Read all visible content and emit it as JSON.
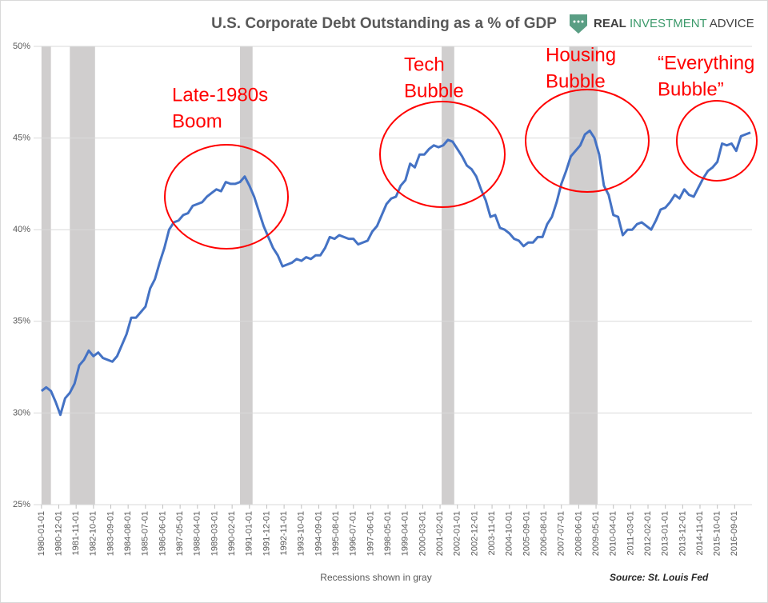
{
  "chart_data": {
    "type": "line",
    "title": "U.S. Corporate Debt Outstanding as a % of GDP",
    "brand": [
      "REAL",
      "INVESTMENT",
      "ADVICE"
    ],
    "x_label": "Recessions shown in gray",
    "source": "Source: St. Louis Fed",
    "color": "#4472c4",
    "band_color": "#d0cece",
    "grid": true,
    "ylim": [
      25,
      50
    ],
    "yticks": [
      {
        "value": 25,
        "label": "25%"
      },
      {
        "value": 30,
        "label": "30%"
      },
      {
        "value": 35,
        "label": "35%"
      },
      {
        "value": 40,
        "label": "40%"
      },
      {
        "value": 45,
        "label": "45%"
      },
      {
        "value": 50,
        "label": "50%"
      }
    ],
    "xlim": [
      "1979-08-01",
      "2017-08-01"
    ],
    "xticks": [
      "1980-01-01",
      "1980-12-01",
      "1981-11-01",
      "1982-10-01",
      "1983-09-01",
      "1984-08-01",
      "1985-07-01",
      "1986-06-01",
      "1987-05-01",
      "1988-04-01",
      "1989-03-01",
      "1990-02-01",
      "1991-01-01",
      "1991-12-01",
      "1992-11-01",
      "1993-10-01",
      "1994-09-01",
      "1995-08-01",
      "1996-07-01",
      "1997-06-01",
      "1998-05-01",
      "1999-04-01",
      "2000-03-01",
      "2001-02-01",
      "2002-01-01",
      "2002-12-01",
      "2003-11-01",
      "2004-10-01",
      "2005-09-01",
      "2006-08-01",
      "2007-07-01",
      "2008-06-01",
      "2009-05-01",
      "2010-04-01",
      "2011-03-01",
      "2012-02-01",
      "2013-01-01",
      "2013-12-01",
      "2014-11-01",
      "2015-10-01",
      "2016-09-01"
    ],
    "recessions": [
      [
        "1980-01-01",
        "1980-07-01"
      ],
      [
        "1981-07-01",
        "1982-11-01"
      ],
      [
        "1990-07-01",
        "1991-03-01"
      ],
      [
        "2001-03-01",
        "2001-11-01"
      ],
      [
        "2007-12-01",
        "2009-06-01"
      ]
    ],
    "annotations": [
      {
        "lines": [
          "Late-1980s",
          "Boom"
        ]
      },
      {
        "lines": [
          "Tech",
          "Bubble"
        ]
      },
      {
        "lines": [
          "Housing",
          "Bubble"
        ]
      },
      {
        "lines": [
          "“Everything",
          "Bubble”"
        ]
      }
    ],
    "x": [
      "1980-01-01",
      "1980-04-01",
      "1980-07-01",
      "1980-10-01",
      "1981-01-01",
      "1981-04-01",
      "1981-07-01",
      "1981-10-01",
      "1982-01-01",
      "1982-04-01",
      "1982-07-01",
      "1982-10-01",
      "1983-01-01",
      "1983-04-01",
      "1983-07-01",
      "1983-10-01",
      "1984-01-01",
      "1984-04-01",
      "1984-07-01",
      "1984-10-01",
      "1985-01-01",
      "1985-04-01",
      "1985-07-01",
      "1985-10-01",
      "1986-01-01",
      "1986-04-01",
      "1986-07-01",
      "1986-10-01",
      "1987-01-01",
      "1987-04-01",
      "1987-07-01",
      "1987-10-01",
      "1988-01-01",
      "1988-04-01",
      "1988-07-01",
      "1988-10-01",
      "1989-01-01",
      "1989-04-01",
      "1989-07-01",
      "1989-10-01",
      "1990-01-01",
      "1990-04-01",
      "1990-07-01",
      "1990-10-01",
      "1991-01-01",
      "1991-04-01",
      "1991-07-01",
      "1991-10-01",
      "1992-01-01",
      "1992-04-01",
      "1992-07-01",
      "1992-10-01",
      "1993-01-01",
      "1993-04-01",
      "1993-07-01",
      "1993-10-01",
      "1994-01-01",
      "1994-04-01",
      "1994-07-01",
      "1994-10-01",
      "1995-01-01",
      "1995-04-01",
      "1995-07-01",
      "1995-10-01",
      "1996-01-01",
      "1996-04-01",
      "1996-07-01",
      "1996-10-01",
      "1997-01-01",
      "1997-04-01",
      "1997-07-01",
      "1997-10-01",
      "1998-01-01",
      "1998-04-01",
      "1998-07-01",
      "1998-10-01",
      "1999-01-01",
      "1999-04-01",
      "1999-07-01",
      "1999-10-01",
      "2000-01-01",
      "2000-04-01",
      "2000-07-01",
      "2000-10-01",
      "2001-01-01",
      "2001-04-01",
      "2001-07-01",
      "2001-10-01",
      "2002-01-01",
      "2002-04-01",
      "2002-07-01",
      "2002-10-01",
      "2003-01-01",
      "2003-04-01",
      "2003-07-01",
      "2003-10-01",
      "2004-01-01",
      "2004-04-01",
      "2004-07-01",
      "2004-10-01",
      "2005-01-01",
      "2005-04-01",
      "2005-07-01",
      "2005-10-01",
      "2006-01-01",
      "2006-04-01",
      "2006-07-01",
      "2006-10-01",
      "2007-01-01",
      "2007-04-01",
      "2007-07-01",
      "2007-10-01",
      "2008-01-01",
      "2008-04-01",
      "2008-07-01",
      "2008-10-01",
      "2009-01-01",
      "2009-04-01",
      "2009-07-01",
      "2009-10-01",
      "2010-01-01",
      "2010-04-01",
      "2010-07-01",
      "2010-10-01",
      "2011-01-01",
      "2011-04-01",
      "2011-07-01",
      "2011-10-01",
      "2012-01-01",
      "2012-04-01",
      "2012-07-01",
      "2012-10-01",
      "2013-01-01",
      "2013-04-01",
      "2013-07-01",
      "2013-10-01",
      "2014-01-01",
      "2014-04-01",
      "2014-07-01",
      "2014-10-01",
      "2015-01-01",
      "2015-04-01",
      "2015-07-01",
      "2015-10-01",
      "2016-01-01",
      "2016-04-01",
      "2016-07-01",
      "2016-10-01",
      "2017-01-01",
      "2017-04-01",
      "2017-07-01"
    ],
    "values": [
      31.2,
      31.4,
      31.2,
      30.6,
      29.9,
      30.8,
      31.1,
      31.6,
      32.6,
      32.9,
      33.4,
      33.1,
      33.3,
      33.0,
      32.9,
      32.8,
      33.1,
      33.7,
      34.3,
      35.2,
      35.2,
      35.5,
      35.8,
      36.8,
      37.3,
      38.2,
      39.0,
      40.0,
      40.4,
      40.5,
      40.8,
      40.9,
      41.3,
      41.4,
      41.5,
      41.8,
      42.0,
      42.2,
      42.1,
      42.6,
      42.5,
      42.5,
      42.6,
      42.9,
      42.4,
      41.8,
      41.0,
      40.2,
      39.6,
      39.0,
      38.6,
      38.0,
      38.1,
      38.2,
      38.4,
      38.3,
      38.5,
      38.4,
      38.6,
      38.6,
      39.0,
      39.6,
      39.5,
      39.7,
      39.6,
      39.5,
      39.5,
      39.2,
      39.3,
      39.4,
      39.9,
      40.2,
      40.8,
      41.4,
      41.7,
      41.8,
      42.4,
      42.7,
      43.6,
      43.4,
      44.1,
      44.1,
      44.4,
      44.6,
      44.5,
      44.6,
      44.9,
      44.8,
      44.4,
      44.0,
      43.5,
      43.3,
      42.9,
      42.2,
      41.6,
      40.7,
      40.8,
      40.1,
      40.0,
      39.8,
      39.5,
      39.4,
      39.1,
      39.3,
      39.3,
      39.6,
      39.6,
      40.3,
      40.7,
      41.5,
      42.5,
      43.2,
      44.0,
      44.3,
      44.6,
      45.2,
      45.4,
      45.0,
      44.1,
      42.4,
      41.9,
      40.8,
      40.7,
      39.7,
      40.0,
      40.0,
      40.3,
      40.4,
      40.2,
      40.0,
      40.5,
      41.1,
      41.2,
      41.5,
      41.9,
      41.7,
      42.2,
      41.9,
      41.8,
      42.3,
      42.8,
      43.2,
      43.4,
      43.7,
      44.7,
      44.6,
      44.7,
      44.3,
      45.1,
      45.2,
      45.3
    ]
  }
}
